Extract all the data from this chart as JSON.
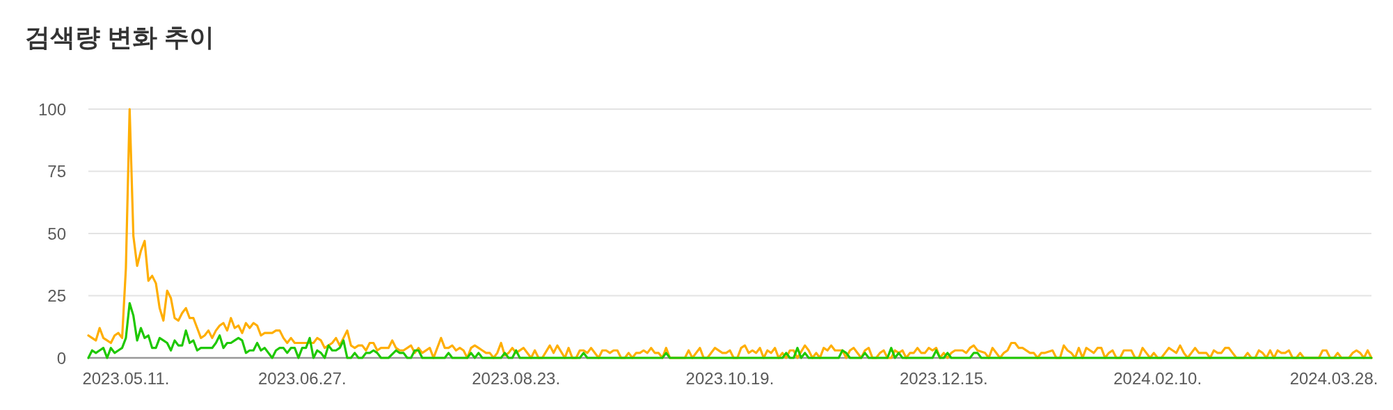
{
  "chart_data": {
    "type": "line",
    "title": "검색량 변화 추이",
    "xlim": [
      "2023-05-01",
      "2024-04-07"
    ],
    "xticks": [
      {
        "value": "2023-05-11",
        "label": "2023.05.11."
      },
      {
        "value": "2023-06-27",
        "label": "2023.06.27."
      },
      {
        "value": "2023-08-23",
        "label": "2023.08.23."
      },
      {
        "value": "2023-10-19",
        "label": "2023.10.19."
      },
      {
        "value": "2023-12-15",
        "label": "2023.12.15."
      },
      {
        "value": "2024-02-10",
        "label": "2024.02.10."
      },
      {
        "value": "2024-03-28",
        "label": "2024.03.28."
      }
    ],
    "ylim": [
      0,
      100
    ],
    "yticks": [
      0,
      25,
      50,
      75,
      100
    ],
    "grid": "y",
    "series": [
      {
        "color": "#ffae00",
        "x": [
          "2023-05-01",
          "2023-05-02",
          "2023-05-03",
          "2023-05-04",
          "2023-05-05",
          "2023-05-06",
          "2023-05-07",
          "2023-05-08",
          "2023-05-09",
          "2023-05-10",
          "2023-05-11",
          "2023-05-12",
          "2023-05-13",
          "2023-05-14",
          "2023-05-15",
          "2023-05-16",
          "2023-05-17",
          "2023-05-18",
          "2023-05-19",
          "2023-05-20",
          "2023-05-21",
          "2023-05-22",
          "2023-05-23",
          "2023-05-24",
          "2023-05-25",
          "2023-05-26",
          "2023-05-27",
          "2023-05-28",
          "2023-05-29",
          "2023-05-30",
          "2023-05-31",
          "2023-06-01",
          "2023-06-02",
          "2023-06-03",
          "2023-06-04",
          "2023-06-05",
          "2023-06-06",
          "2023-06-07",
          "2023-06-08",
          "2023-06-09",
          "2023-06-10",
          "2023-06-11",
          "2023-06-12",
          "2023-06-13",
          "2023-06-14",
          "2023-06-15",
          "2023-06-16",
          "2023-06-17",
          "2023-06-19",
          "2023-06-20",
          "2023-06-21",
          "2023-06-22",
          "2023-06-23",
          "2023-06-24",
          "2023-06-25",
          "2023-06-30",
          "2023-07-01",
          "2023-07-02",
          "2023-07-03",
          "2023-07-04",
          "2023-07-05",
          "2023-07-06",
          "2023-07-07",
          "2023-07-08",
          "2023-07-09",
          "2023-07-10",
          "2023-07-11",
          "2023-07-12",
          "2023-07-13",
          "2023-07-14",
          "2023-07-15",
          "2023-07-16",
          "2023-07-17",
          "2023-07-18",
          "2023-07-20",
          "2023-07-21",
          "2023-07-22",
          "2023-07-23",
          "2023-07-24",
          "2023-07-26",
          "2023-07-27",
          "2023-07-28",
          "2023-07-29",
          "2023-07-31",
          "2023-08-01",
          "2023-08-03",
          "2023-08-04",
          "2023-08-05",
          "2023-08-06",
          "2023-08-07",
          "2023-08-08",
          "2023-08-09",
          "2023-08-10",
          "2023-08-11",
          "2023-08-12",
          "2023-08-13",
          "2023-08-14",
          "2023-08-15",
          "2023-08-16",
          "2023-08-17",
          "2023-08-18",
          "2023-08-19",
          "2023-08-20",
          "2023-08-21",
          "2023-08-22",
          "2023-08-23",
          "2023-08-25",
          "2023-08-27",
          "2023-08-28",
          "2023-08-29",
          "2023-08-30",
          "2023-09-01",
          "2023-09-02",
          "2023-09-03",
          "2023-09-05",
          "2023-09-06",
          "2023-09-07",
          "2023-09-08",
          "2023-09-09",
          "2023-09-10",
          "2023-09-11",
          "2023-09-12",
          "2023-09-14",
          "2023-09-15",
          "2023-09-16",
          "2023-09-17",
          "2023-09-18",
          "2023-09-19",
          "2023-09-20",
          "2023-09-21",
          "2023-09-22",
          "2023-09-23",
          "2023-09-24",
          "2023-09-25",
          "2023-09-26",
          "2023-09-27",
          "2023-09-28",
          "2023-09-29",
          "2023-09-30",
          "2023-10-01",
          "2023-10-02",
          "2023-10-03",
          "2023-10-07",
          "2023-10-08",
          "2023-10-09",
          "2023-10-11",
          "2023-10-12",
          "2023-10-13",
          "2023-10-15",
          "2023-10-17",
          "2023-10-18",
          "2023-10-19",
          "2023-10-20",
          "2023-10-21",
          "2023-10-22",
          "2023-10-23",
          "2023-10-24",
          "2023-10-25",
          "2023-10-26",
          "2023-10-27",
          "2023-10-28",
          "2023-10-29",
          "2023-10-30",
          "2023-10-31",
          "2023-11-01",
          "2023-11-02",
          "2023-11-03",
          "2023-11-04",
          "2023-11-05",
          "2023-11-06",
          "2023-11-08",
          "2023-11-09",
          "2023-11-10",
          "2023-11-11",
          "2023-11-12",
          "2023-11-13",
          "2023-11-14",
          "2023-11-15",
          "2023-11-16",
          "2023-11-18",
          "2023-11-19",
          "2023-11-20",
          "2023-11-21",
          "2023-11-23",
          "2023-11-24",
          "2023-11-25",
          "2023-11-26",
          "2023-11-27",
          "2023-11-28",
          "2023-11-29",
          "2023-11-30",
          "2023-12-01",
          "2023-12-02",
          "2023-12-03",
          "2023-12-04",
          "2023-12-05",
          "2023-12-06",
          "2023-12-07",
          "2023-12-08",
          "2023-12-09",
          "2023-12-10",
          "2023-12-11",
          "2023-12-12",
          "2023-12-13",
          "2023-12-14",
          "2023-12-15",
          "2023-12-16",
          "2023-12-17",
          "2023-12-18",
          "2023-12-20",
          "2023-12-21",
          "2023-12-22",
          "2023-12-23",
          "2023-12-24",
          "2023-12-26",
          "2023-12-27",
          "2023-12-28",
          "2023-12-30",
          "2023-12-31",
          "2024-01-01",
          "2024-01-02",
          "2024-01-03",
          "2024-01-04",
          "2024-01-05",
          "2024-01-07",
          "2024-01-08",
          "2024-01-09",
          "2024-01-10",
          "2024-01-11",
          "2024-01-13",
          "2024-01-14",
          "2024-01-15",
          "2024-01-16",
          "2024-01-17",
          "2024-01-18",
          "2024-01-19",
          "2024-01-20",
          "2024-01-21",
          "2024-01-22",
          "2024-01-23",
          "2024-01-24",
          "2024-01-25",
          "2024-01-26",
          "2024-01-27",
          "2024-01-28",
          "2024-01-29",
          "2024-01-30",
          "2024-01-31",
          "2024-02-01",
          "2024-02-03",
          "2024-02-04",
          "2024-02-05",
          "2024-02-06",
          "2024-02-07",
          "2024-02-08",
          "2024-02-09",
          "2024-02-10",
          "2024-02-11",
          "2024-02-12",
          "2024-02-13",
          "2024-02-14",
          "2024-02-15",
          "2024-02-16",
          "2024-02-17",
          "2024-02-18",
          "2024-02-19",
          "2024-02-20",
          "2024-02-21",
          "2024-02-23",
          "2024-02-24",
          "2024-02-25",
          "2024-02-26",
          "2024-02-27",
          "2024-02-28",
          "2024-02-29",
          "2024-03-01",
          "2024-03-02",
          "2024-03-04",
          "2024-03-05",
          "2024-03-06",
          "2024-03-07",
          "2024-03-08",
          "2024-03-09",
          "2024-03-10",
          "2024-03-11",
          "2024-03-12",
          "2024-03-13",
          "2024-03-14",
          "2024-03-15",
          "2024-03-16",
          "2024-03-17",
          "2024-03-18",
          "2024-03-19",
          "2024-03-20",
          "2024-03-24",
          "2024-03-25",
          "2024-03-26",
          "2024-03-27",
          "2024-03-28",
          "2024-03-29",
          "2024-03-30",
          "2024-04-01",
          "2024-04-02",
          "2024-04-03",
          "2024-04-04",
          "2024-04-05",
          "2024-04-06",
          "2024-04-07"
        ],
        "values": [
          9,
          8,
          7,
          12,
          8,
          7,
          6,
          9,
          10,
          8,
          36,
          100,
          49,
          37,
          43,
          47,
          31,
          33,
          30,
          20,
          15,
          27,
          24,
          16,
          15,
          18,
          20,
          16,
          16,
          12,
          8,
          9,
          11,
          8,
          11,
          13,
          14,
          11,
          16,
          12,
          13,
          10,
          14,
          12,
          14,
          13,
          9,
          10,
          10,
          11,
          11,
          8,
          6,
          8,
          6,
          6,
          8,
          7,
          4,
          5,
          6,
          8,
          5,
          8,
          11,
          5,
          4,
          5,
          5,
          3,
          6,
          6,
          3,
          4,
          4,
          7,
          4,
          3,
          3,
          5,
          2,
          4,
          2,
          4,
          0,
          8,
          4,
          4,
          5,
          3,
          4,
          3,
          0,
          4,
          5,
          4,
          3,
          2,
          2,
          0,
          2,
          6,
          1,
          2,
          4,
          2,
          4,
          0,
          3,
          0,
          0,
          5,
          2,
          5,
          0,
          4,
          0,
          0,
          3,
          3,
          2,
          4,
          0,
          3,
          3,
          2,
          3,
          3,
          0,
          0,
          2,
          0,
          2,
          2,
          3,
          2,
          4,
          2,
          2,
          0,
          4,
          0,
          0,
          3,
          0,
          4,
          0,
          0,
          4,
          2,
          2,
          3,
          0,
          0,
          4,
          5,
          2,
          3,
          2,
          4,
          0,
          3,
          2,
          4,
          0,
          2,
          0,
          3,
          3,
          0,
          5,
          3,
          0,
          2,
          0,
          4,
          3,
          5,
          3,
          3,
          0,
          3,
          4,
          0,
          3,
          4,
          0,
          0,
          2,
          3,
          0,
          0,
          3,
          2,
          3,
          0,
          2,
          2,
          4,
          2,
          2,
          4,
          3,
          4,
          0,
          2,
          0,
          2,
          3,
          3,
          2,
          4,
          5,
          3,
          2,
          0,
          4,
          0,
          2,
          3,
          6,
          6,
          4,
          4,
          2,
          2,
          0,
          2,
          2,
          3,
          0,
          0,
          5,
          3,
          2,
          0,
          4,
          0,
          4,
          3,
          2,
          4,
          4,
          0,
          2,
          3,
          0,
          0,
          3,
          3,
          0,
          0,
          4,
          2,
          0,
          2,
          0,
          0,
          2,
          4,
          3,
          2,
          5,
          2,
          0,
          2,
          4,
          2,
          2,
          0,
          3,
          2,
          2,
          4,
          4,
          2,
          0,
          0,
          2,
          0,
          0,
          3,
          2,
          0,
          3,
          0,
          3,
          2,
          2,
          3,
          0,
          0,
          2,
          0,
          0,
          3,
          3,
          0,
          0,
          2,
          0,
          0,
          2,
          3,
          2,
          0,
          3,
          0
        ]
      },
      {
        "color": "#1ec800",
        "x": [
          "2023-05-01",
          "2023-05-02",
          "2023-05-03",
          "2023-05-04",
          "2023-05-05",
          "2023-05-06",
          "2023-05-07",
          "2023-05-08",
          "2023-05-09",
          "2023-05-10",
          "2023-05-11",
          "2023-05-12",
          "2023-05-13",
          "2023-05-14",
          "2023-05-15",
          "2023-05-16",
          "2023-05-17",
          "2023-05-18",
          "2023-05-19",
          "2023-05-20",
          "2023-05-21",
          "2023-05-22",
          "2023-05-23",
          "2023-05-24",
          "2023-05-25",
          "2023-05-26",
          "2023-05-27",
          "2023-05-28",
          "2023-05-29",
          "2023-05-30",
          "2023-05-31",
          "2023-06-03",
          "2023-06-04",
          "2023-06-05",
          "2023-06-06",
          "2023-06-07",
          "2023-06-08",
          "2023-06-09",
          "2023-06-10",
          "2023-06-11",
          "2023-06-12",
          "2023-06-13",
          "2023-06-14",
          "2023-06-15",
          "2023-06-16",
          "2023-06-17",
          "2023-06-18",
          "2023-06-19",
          "2023-06-20",
          "2023-06-21",
          "2023-06-22",
          "2023-06-23",
          "2023-06-24",
          "2023-06-25",
          "2023-06-26",
          "2023-06-27",
          "2023-06-28",
          "2023-06-29",
          "2023-06-30",
          "2023-07-01",
          "2023-07-02",
          "2023-07-03",
          "2023-07-04",
          "2023-07-05",
          "2023-07-06",
          "2023-07-07",
          "2023-07-08",
          "2023-07-09",
          "2023-07-10",
          "2023-07-11",
          "2023-07-12",
          "2023-07-13",
          "2023-07-14",
          "2023-07-15",
          "2023-07-16",
          "2023-07-17",
          "2023-07-18",
          "2023-07-20",
          "2023-07-22",
          "2023-07-23",
          "2023-07-24",
          "2023-07-25",
          "2023-07-26",
          "2023-07-27",
          "2023-07-28",
          "2023-07-29",
          "2023-08-04",
          "2023-08-05",
          "2023-08-06",
          "2023-08-10",
          "2023-08-11",
          "2023-08-12",
          "2023-08-13",
          "2023-08-14",
          "2023-08-19",
          "2023-08-20",
          "2023-08-21",
          "2023-08-22",
          "2023-08-23",
          "2023-08-24",
          "2023-09-09",
          "2023-09-10",
          "2023-09-11",
          "2023-10-01",
          "2023-10-02",
          "2023-10-03",
          "2023-11-02",
          "2023-11-03",
          "2023-11-04",
          "2023-11-05",
          "2023-11-06",
          "2023-11-07",
          "2023-11-08",
          "2023-11-09",
          "2023-11-17",
          "2023-11-18",
          "2023-11-19",
          "2023-11-20",
          "2023-11-23",
          "2023-11-24",
          "2023-11-25",
          "2023-11-30",
          "2023-12-01",
          "2023-12-02",
          "2023-12-03",
          "2023-12-04",
          "2023-12-12",
          "2023-12-13",
          "2023-12-14",
          "2023-12-15",
          "2023-12-16",
          "2023-12-17",
          "2023-12-22",
          "2023-12-23",
          "2023-12-24",
          "2023-12-25",
          "2024-04-07"
        ],
        "values": [
          0,
          3,
          2,
          3,
          4,
          0,
          4,
          2,
          3,
          4,
          8,
          22,
          17,
          7,
          12,
          8,
          9,
          4,
          4,
          8,
          7,
          6,
          3,
          7,
          5,
          5,
          11,
          6,
          7,
          3,
          4,
          4,
          6,
          9,
          4,
          6,
          6,
          7,
          8,
          7,
          2,
          3,
          3,
          6,
          3,
          4,
          2,
          0,
          3,
          4,
          4,
          2,
          4,
          4,
          0,
          4,
          4,
          8,
          0,
          3,
          2,
          0,
          5,
          3,
          3,
          4,
          7,
          0,
          0,
          2,
          0,
          0,
          2,
          2,
          3,
          2,
          0,
          0,
          3,
          2,
          2,
          0,
          0,
          3,
          3,
          0,
          0,
          2,
          0,
          0,
          2,
          0,
          2,
          0,
          0,
          2,
          0,
          0,
          3,
          0,
          0,
          2,
          0,
          0,
          2,
          0,
          0,
          2,
          0,
          0,
          4,
          0,
          2,
          0,
          0,
          3,
          2,
          0,
          0,
          2,
          0,
          0,
          4,
          0,
          2,
          0,
          0,
          3,
          0,
          0,
          2,
          0,
          0,
          2,
          2,
          0,
          0
        ]
      }
    ]
  }
}
